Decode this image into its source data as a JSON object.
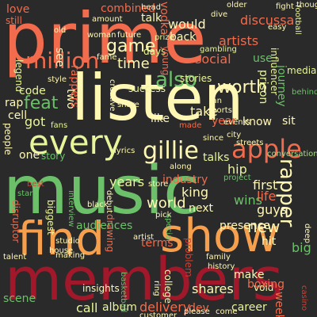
{
  "palette": {
    "background": "#2a2a2a",
    "coral": "#f26b4c",
    "orange": "#f6a04d",
    "cream": "#fff8b5",
    "light_yellow": "#e9f59a",
    "green": "#6cc06a",
    "light_green": "#a7d98c",
    "dark_red": "#a0182a",
    "red": "#d63d2f"
  },
  "words": [
    {
      "text": "prime",
      "color": "coral"
    },
    {
      "text": "listen",
      "color": "cream"
    },
    {
      "text": "music",
      "color": "green"
    },
    {
      "text": "members",
      "color": "dark_red"
    },
    {
      "text": "find",
      "color": "orange"
    },
    {
      "text": "show",
      "color": "orange"
    },
    {
      "text": "every",
      "color": "light_yellow"
    },
    {
      "text": "apple",
      "color": "coral"
    },
    {
      "text": "gillie",
      "color": "cream"
    },
    {
      "text": "million",
      "color": "coral"
    },
    {
      "text": "game",
      "color": "cream"
    },
    {
      "text": "worth",
      "color": "cream"
    },
    {
      "text": "also",
      "color": "green"
    },
    {
      "text": "rapper",
      "color": "cream"
    },
    {
      "text": "time",
      "color": "cream"
    },
    {
      "text": "feat",
      "color": "green"
    },
    {
      "text": "new",
      "color": "cream"
    },
    {
      "text": "talks",
      "color": "light_yellow"
    },
    {
      "text": "hip",
      "color": "light_yellow"
    },
    {
      "text": "first",
      "color": "cream"
    },
    {
      "text": "life",
      "color": "coral"
    },
    {
      "text": "guys",
      "color": "cream"
    },
    {
      "text": "wins",
      "color": "green"
    },
    {
      "text": "next",
      "color": "cream"
    },
    {
      "text": "king",
      "color": "cream"
    },
    {
      "text": "world",
      "color": "cream"
    },
    {
      "text": "industry",
      "color": "coral"
    },
    {
      "text": "presence",
      "color": "cream"
    },
    {
      "text": "hit",
      "color": "cream"
    },
    {
      "text": "big",
      "color": "green"
    },
    {
      "text": "audiences",
      "color": "green"
    },
    {
      "text": "terms",
      "color": "coral"
    },
    {
      "text": "biggest",
      "color": "light_yellow"
    },
    {
      "text": "disruptor",
      "color": "coral"
    },
    {
      "text": "one",
      "color": "cream"
    },
    {
      "text": "story",
      "color": "green"
    },
    {
      "text": "got",
      "color": "light_yellow"
    },
    {
      "text": "rap",
      "color": "cream"
    },
    {
      "text": "code",
      "color": "light_yellow"
    },
    {
      "text": "cell",
      "color": "cream"
    },
    {
      "text": "two",
      "color": "cream"
    },
    {
      "text": "like",
      "color": "cream"
    },
    {
      "text": "take",
      "color": "cream"
    },
    {
      "text": "success",
      "color": "light_yellow"
    },
    {
      "text": "stories",
      "color": "light_yellow"
    },
    {
      "text": "social",
      "color": "coral"
    },
    {
      "text": "artists",
      "color": "coral"
    },
    {
      "text": "discussa",
      "color": "coral"
    },
    {
      "text": "journey",
      "color": "green"
    },
    {
      "text": "influencer",
      "color": "light_yellow"
    },
    {
      "text": "prison",
      "color": "light_yellow"
    },
    {
      "text": "media",
      "color": "light_yellow"
    },
    {
      "text": "use",
      "color": "green"
    },
    {
      "text": "would",
      "color": "cream"
    },
    {
      "text": "back",
      "color": "cream"
    },
    {
      "text": "days",
      "color": "light_yellow"
    },
    {
      "text": "young",
      "color": "coral"
    },
    {
      "text": "talk",
      "color": "cream"
    },
    {
      "text": "combined",
      "color": "coral"
    },
    {
      "text": "love",
      "color": "coral"
    },
    {
      "text": "still",
      "color": "coral"
    },
    {
      "text": "see",
      "color": "cream"
    },
    {
      "text": "people",
      "color": "cream"
    },
    {
      "text": "know",
      "color": "cream"
    },
    {
      "text": "sit",
      "color": "cream"
    },
    {
      "text": "year",
      "color": "coral"
    },
    {
      "text": "call",
      "color": "light_yellow"
    },
    {
      "text": "album",
      "color": "light_yellow"
    },
    {
      "text": "delivery",
      "color": "coral"
    },
    {
      "text": "dev",
      "color": "coral"
    },
    {
      "text": "shares",
      "color": "cream"
    },
    {
      "text": "career",
      "color": "light_yellow"
    },
    {
      "text": "void",
      "color": "cream"
    },
    {
      "text": "weekly",
      "color": "coral"
    },
    {
      "text": "make",
      "color": "cream"
    },
    {
      "text": "boxing",
      "color": "coral"
    },
    {
      "text": "scene",
      "color": "green"
    },
    {
      "text": "insights",
      "color": "cream"
    },
    {
      "text": "years",
      "color": "light_yellow"
    },
    {
      "text": "vodka",
      "color": "coral"
    },
    {
      "text": "rappers",
      "color": "coral"
    },
    {
      "text": "conversation",
      "color": "light_green"
    },
    {
      "text": "older",
      "color": "cream"
    },
    {
      "text": "head",
      "color": "cream"
    },
    {
      "text": "football",
      "color": "light_yellow"
    },
    {
      "text": "easy",
      "color": "cream"
    },
    {
      "text": "legend",
      "color": "light_yellow"
    },
    {
      "text": "gambling",
      "color": "light_yellow"
    },
    {
      "text": "prize",
      "color": "light_yellow"
    },
    {
      "text": "future",
      "color": "cream"
    },
    {
      "text": "woman",
      "color": "cream"
    },
    {
      "text": "dive",
      "color": "cream"
    },
    {
      "text": "old",
      "color": "cream"
    },
    {
      "text": "fans",
      "color": "light_yellow"
    },
    {
      "text": "fan",
      "color": "cream"
    },
    {
      "text": "sports",
      "color": "cream"
    },
    {
      "text": "events",
      "color": "cream"
    },
    {
      "text": "made",
      "color": "coral"
    },
    {
      "text": "along",
      "color": "cream"
    },
    {
      "text": "project",
      "color": "green"
    },
    {
      "text": "debut",
      "color": "cream"
    },
    {
      "text": "lyrics",
      "color": "cream"
    },
    {
      "text": "store",
      "color": "cream"
    },
    {
      "text": "pick",
      "color": "cream"
    },
    {
      "text": "black",
      "color": "cream"
    },
    {
      "text": "artist",
      "color": "cream"
    },
    {
      "text": "special",
      "color": "green"
    },
    {
      "text": "problem",
      "color": "red"
    },
    {
      "text": "college",
      "color": "cream"
    },
    {
      "text": "basketball",
      "color": "green"
    },
    {
      "text": "drawing",
      "color": "coral"
    },
    {
      "text": "interview",
      "color": "green"
    },
    {
      "text": "star",
      "color": "green"
    },
    {
      "text": "best",
      "color": "red"
    },
    {
      "text": "casino",
      "color": "red"
    },
    {
      "text": "please",
      "color": "cream"
    },
    {
      "text": "come",
      "color": "cream"
    },
    {
      "text": "fight",
      "color": "cream"
    },
    {
      "text": "creative",
      "color": "cream"
    },
    {
      "text": "talent",
      "color": "cream"
    },
    {
      "text": "making",
      "color": "cream"
    },
    {
      "text": "share",
      "color": "cream"
    },
    {
      "text": "behind",
      "color": "green"
    },
    {
      "text": "deep",
      "color": "cream"
    },
    {
      "text": "city",
      "color": "cream"
    },
    {
      "text": "since",
      "color": "cream"
    },
    {
      "text": "streets",
      "color": "cream"
    },
    {
      "text": "ring",
      "color": "cream"
    },
    {
      "text": "studio",
      "color": "cream"
    },
    {
      "text": "house",
      "color": "cream"
    },
    {
      "text": "family",
      "color": "cream"
    },
    {
      "text": "history",
      "color": "cream"
    },
    {
      "text": "fame",
      "color": "cream"
    },
    {
      "text": "amount",
      "color": "cream"
    },
    {
      "text": "style",
      "color": "cream"
    },
    {
      "text": "thoughts",
      "color": "cream"
    },
    {
      "text": "customer",
      "color": "cream"
    }
  ]
}
